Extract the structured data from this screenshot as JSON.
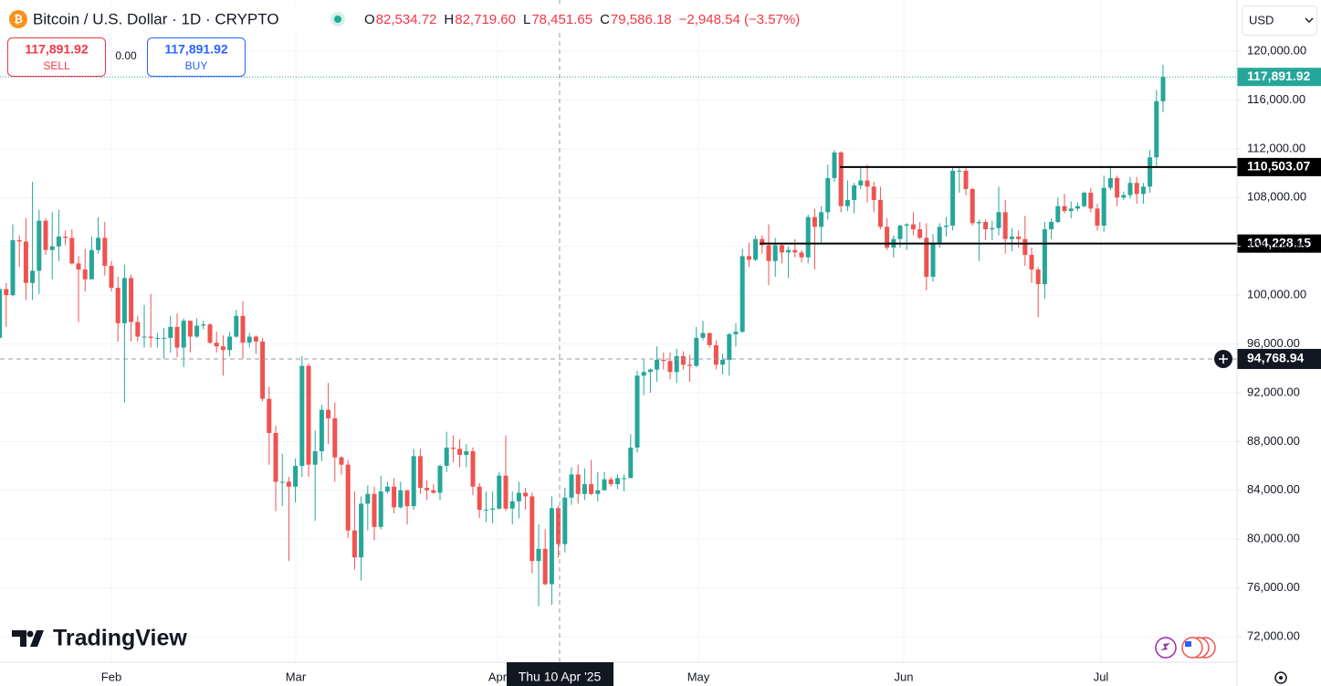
{
  "header": {
    "title": "Bitcoin / U.S. Dollar · 1D · CRYPTO",
    "ohlc": [
      {
        "key": "O",
        "value": "82,534.72"
      },
      {
        "key": "H",
        "value": "82,719.60"
      },
      {
        "key": "L",
        "value": "78,451.65"
      },
      {
        "key": "C",
        "value": "79,586.18"
      }
    ],
    "change": "−2,948.54 (−3.57%)"
  },
  "trade": {
    "sell_price": "117,891.92",
    "sell": "SELL",
    "spread": "0.00",
    "buy_price": "117,891.92",
    "buy": "BUY"
  },
  "currency": "USD",
  "brand": "TradingView",
  "chart_data": {
    "type": "candlestick",
    "colors": {
      "up": "#26a69a",
      "down": "#ef5350"
    },
    "grid": true,
    "ylim": [
      69900,
      124200
    ],
    "yticks": [
      {
        "value": 72000,
        "label": "72,000.00"
      },
      {
        "value": 76000,
        "label": "76,000.00"
      },
      {
        "value": 80000,
        "label": "80,000.00"
      },
      {
        "value": 84000,
        "label": "84,000.00"
      },
      {
        "value": 88000,
        "label": "88,000.00"
      },
      {
        "value": 92000,
        "label": "92,000.00"
      },
      {
        "value": 96000,
        "label": "96,000.00"
      },
      {
        "value": 100000,
        "label": "100,000.00"
      },
      {
        "value": 104000,
        "label": "104,000.00"
      },
      {
        "value": 108000,
        "label": "108,000.00"
      },
      {
        "value": 112000,
        "label": "112,000.00"
      },
      {
        "value": 116000,
        "label": "116,000.00"
      },
      {
        "value": 120000,
        "label": "120,000.00"
      }
    ],
    "x_labels": [
      "Feb",
      "Mar",
      "Apr",
      "May",
      "Jun",
      "Jul"
    ],
    "last_price": {
      "value": 117891.92,
      "label": "117,891.92"
    },
    "hlines": [
      {
        "value": 110503.07,
        "label": "110,503.07"
      },
      {
        "value": 104228.15,
        "label": "104,228.15"
      }
    ],
    "crosshair": {
      "price": {
        "value": 94768.94,
        "label": "94,768.94"
      },
      "date": "Thu 10 Apr '25"
    },
    "ohlc": [
      [
        96500,
        100800,
        96200,
        100500
      ],
      [
        100500,
        101000,
        97400,
        100000
      ],
      [
        100000,
        105800,
        99900,
        104500
      ],
      [
        104500,
        104900,
        102300,
        104400
      ],
      [
        104400,
        106300,
        99600,
        101000
      ],
      [
        101000,
        109300,
        99600,
        102000
      ],
      [
        102000,
        107000,
        100100,
        106100
      ],
      [
        106100,
        106300,
        103300,
        103700
      ],
      [
        103700,
        106800,
        101300,
        104000
      ],
      [
        104000,
        107000,
        102800,
        104800
      ],
      [
        104800,
        105300,
        104100,
        104700
      ],
      [
        104700,
        105400,
        102500,
        102600
      ],
      [
        102600,
        103200,
        97800,
        102100
      ],
      [
        102100,
        103800,
        100300,
        101300
      ],
      [
        101300,
        104800,
        101300,
        103700
      ],
      [
        103700,
        106400,
        103400,
        104700
      ],
      [
        104700,
        106000,
        101600,
        102400
      ],
      [
        102400,
        102800,
        100300,
        100600
      ],
      [
        100600,
        101500,
        96200,
        97700
      ],
      [
        97700,
        102500,
        91200,
        101400
      ],
      [
        101400,
        101700,
        96200,
        97800
      ],
      [
        97800,
        98300,
        96200,
        96600
      ],
      [
        96600,
        99200,
        95700,
        96600
      ],
      [
        96600,
        100100,
        95700,
        96500
      ],
      [
        96500,
        96900,
        95700,
        96500
      ],
      [
        96500,
        97300,
        94800,
        96500
      ],
      [
        96500,
        98300,
        95300,
        97400
      ],
      [
        97400,
        98500,
        94900,
        95700
      ],
      [
        95700,
        98100,
        94100,
        97900
      ],
      [
        97900,
        97900,
        95300,
        96600
      ],
      [
        96600,
        98100,
        96500,
        97500
      ],
      [
        97500,
        97900,
        97200,
        97600
      ],
      [
        97600,
        97700,
        96000,
        96100
      ],
      [
        96100,
        97000,
        95300,
        95800
      ],
      [
        95800,
        96700,
        93400,
        95500
      ],
      [
        95500,
        97000,
        95000,
        96600
      ],
      [
        96600,
        98800,
        96500,
        98300
      ],
      [
        98300,
        99500,
        94800,
        96100
      ],
      [
        96100,
        96900,
        95700,
        96600
      ],
      [
        96600,
        96700,
        95200,
        96200
      ],
      [
        96200,
        96500,
        91300,
        91500
      ],
      [
        91500,
        92500,
        86100,
        88700
      ],
      [
        88700,
        89300,
        82300,
        84700
      ],
      [
        84700,
        87000,
        82700,
        84700
      ],
      [
        84700,
        85100,
        78200,
        84300
      ],
      [
        84300,
        86600,
        83000,
        86000
      ],
      [
        86000,
        95000,
        85100,
        94200
      ],
      [
        94200,
        94400,
        85100,
        86100
      ],
      [
        86100,
        88900,
        81500,
        87200
      ],
      [
        87200,
        91000,
        86400,
        90600
      ],
      [
        90600,
        92800,
        87800,
        89900
      ],
      [
        89900,
        91200,
        84700,
        86700
      ],
      [
        86700,
        86800,
        85300,
        86100
      ],
      [
        86100,
        86500,
        80100,
        80700
      ],
      [
        80700,
        83900,
        77500,
        78500
      ],
      [
        78500,
        83500,
        76600,
        82900
      ],
      [
        82900,
        84400,
        80700,
        83700
      ],
      [
        83700,
        84300,
        79900,
        81000
      ],
      [
        81000,
        85200,
        80800,
        83900
      ],
      [
        83900,
        84700,
        83700,
        84300
      ],
      [
        84300,
        85000,
        82100,
        82600
      ],
      [
        82600,
        84700,
        82500,
        84000
      ],
      [
        84000,
        84000,
        81200,
        82700
      ],
      [
        82700,
        87400,
        82400,
        86800
      ],
      [
        86800,
        87400,
        83700,
        84200
      ],
      [
        84200,
        84800,
        83200,
        84000
      ],
      [
        84000,
        84500,
        83700,
        83800
      ],
      [
        83800,
        86100,
        83200,
        86000
      ],
      [
        86000,
        88800,
        85500,
        87500
      ],
      [
        87500,
        88500,
        86300,
        87400
      ],
      [
        87400,
        88200,
        85900,
        86900
      ],
      [
        86900,
        87800,
        85900,
        87200
      ],
      [
        87200,
        87500,
        83600,
        84300
      ],
      [
        84300,
        84600,
        81700,
        82400
      ],
      [
        82400,
        83900,
        81400,
        82400
      ],
      [
        82400,
        83900,
        81300,
        82500
      ],
      [
        82500,
        85500,
        82400,
        85200
      ],
      [
        85200,
        88500,
        82300,
        82500
      ],
      [
        82500,
        83900,
        81200,
        83100
      ],
      [
        83100,
        84700,
        81700,
        83800
      ],
      [
        83800,
        84200,
        82400,
        83500
      ],
      [
        83500,
        83800,
        77200,
        78200
      ],
      [
        78200,
        81200,
        74500,
        79200
      ],
      [
        79200,
        80800,
        76200,
        76300
      ],
      [
        76300,
        83500,
        74600,
        82534.72
      ],
      [
        82534.72,
        82719.6,
        78451.65,
        79586.18
      ],
      [
        79586.18,
        84200,
        78900,
        83400
      ],
      [
        83400,
        85900,
        82800,
        85300
      ],
      [
        85300,
        86100,
        82900,
        83700
      ],
      [
        83700,
        85800,
        83200,
        84500
      ],
      [
        84500,
        86500,
        83600,
        83700
      ],
      [
        83700,
        85500,
        83100,
        84000
      ],
      [
        84000,
        85500,
        84000,
        84900
      ],
      [
        84900,
        85100,
        84300,
        84500
      ],
      [
        84500,
        85300,
        84100,
        85000
      ],
      [
        85000,
        85300,
        83900,
        85000
      ],
      [
        85000,
        88600,
        85000,
        87500
      ],
      [
        87500,
        93800,
        87100,
        93400
      ],
      [
        93400,
        94700,
        91800,
        93700
      ],
      [
        93700,
        94000,
        92000,
        93900
      ],
      [
        93900,
        95800,
        92900,
        94700
      ],
      [
        94700,
        95300,
        93900,
        94600
      ],
      [
        94600,
        95300,
        93100,
        93700
      ],
      [
        93700,
        95600,
        92800,
        95000
      ],
      [
        95000,
        95400,
        93900,
        94300
      ],
      [
        94300,
        95100,
        92900,
        94200
      ],
      [
        94200,
        97400,
        94100,
        96500
      ],
      [
        96500,
        97900,
        96300,
        96900
      ],
      [
        96900,
        96900,
        95700,
        95900
      ],
      [
        95900,
        96300,
        93900,
        94300
      ],
      [
        94300,
        95200,
        93500,
        94700
      ],
      [
        94700,
        96900,
        93400,
        96800
      ],
      [
        96800,
        97700,
        95800,
        97000
      ],
      [
        97000,
        103800,
        96900,
        103200
      ],
      [
        103200,
        104300,
        102300,
        102900
      ],
      [
        102900,
        104900,
        102800,
        104600
      ],
      [
        104600,
        104900,
        103400,
        104100
      ],
      [
        104100,
        105800,
        100800,
        102800
      ],
      [
        102800,
        104700,
        101500,
        104100
      ],
      [
        104100,
        104300,
        102600,
        103500
      ],
      [
        103500,
        104000,
        101400,
        103700
      ],
      [
        103700,
        104600,
        103100,
        103500
      ],
      [
        103500,
        103700,
        102700,
        103100
      ],
      [
        103100,
        106600,
        102600,
        106400
      ],
      [
        106400,
        107100,
        102100,
        105600
      ],
      [
        105600,
        107300,
        104300,
        106800
      ],
      [
        106800,
        110700,
        106200,
        109600
      ],
      [
        109600,
        111900,
        109300,
        111700
      ],
      [
        111700,
        111800,
        106800,
        107300
      ],
      [
        107300,
        109400,
        106900,
        107800
      ],
      [
        107800,
        109200,
        106700,
        109000
      ],
      [
        109000,
        110400,
        108700,
        109400
      ],
      [
        109400,
        110700,
        107600,
        108900
      ],
      [
        108900,
        109300,
        106800,
        107800
      ],
      [
        107800,
        108900,
        105400,
        105600
      ],
      [
        105600,
        106300,
        103700,
        103900
      ],
      [
        103900,
        104900,
        103100,
        104600
      ],
      [
        104600,
        105800,
        103900,
        105700
      ],
      [
        105700,
        105900,
        103700,
        105800
      ],
      [
        105800,
        106800,
        104900,
        105400
      ],
      [
        105400,
        106000,
        104600,
        104700
      ],
      [
        104700,
        105900,
        100400,
        101500
      ],
      [
        101500,
        105000,
        101100,
        104300
      ],
      [
        104300,
        105900,
        103900,
        105600
      ],
      [
        105600,
        106400,
        104800,
        105700
      ],
      [
        105700,
        110500,
        105300,
        110200
      ],
      [
        110200,
        110400,
        108400,
        110200
      ],
      [
        110200,
        110400,
        108200,
        108700
      ],
      [
        108700,
        108800,
        105700,
        105900
      ],
      [
        105900,
        106200,
        102800,
        106000
      ],
      [
        106000,
        106200,
        104500,
        105400
      ],
      [
        105400,
        106100,
        104500,
        105500
      ],
      [
        105500,
        108900,
        104900,
        106800
      ],
      [
        106800,
        107800,
        103400,
        104600
      ],
      [
        104600,
        105500,
        103600,
        104800
      ],
      [
        104800,
        105300,
        103900,
        104600
      ],
      [
        104600,
        106500,
        102400,
        103300
      ],
      [
        103300,
        103900,
        101000,
        102100
      ],
      [
        102100,
        102300,
        98200,
        100900
      ],
      [
        100900,
        106000,
        99700,
        105400
      ],
      [
        105400,
        106300,
        104600,
        106000
      ],
      [
        106000,
        108000,
        105900,
        107300
      ],
      [
        107300,
        108300,
        106700,
        106900
      ],
      [
        106900,
        107700,
        106300,
        107100
      ],
      [
        107100,
        107600,
        106900,
        107300
      ],
      [
        107300,
        108500,
        107200,
        108400
      ],
      [
        108400,
        108800,
        106800,
        107100
      ],
      [
        107100,
        107500,
        105300,
        105700
      ],
      [
        105700,
        109800,
        105200,
        108800
      ],
      [
        108800,
        110600,
        108600,
        109600
      ],
      [
        109600,
        109800,
        107300,
        108000
      ],
      [
        108000,
        108500,
        107800,
        108200
      ],
      [
        108200,
        109700,
        107900,
        109200
      ],
      [
        109200,
        109700,
        107500,
        108300
      ],
      [
        108300,
        109200,
        107500,
        108900
      ],
      [
        108900,
        111900,
        108400,
        111300
      ],
      [
        111300,
        116800,
        110600,
        115900
      ],
      [
        115900,
        118900,
        115000,
        117891.92
      ]
    ]
  }
}
